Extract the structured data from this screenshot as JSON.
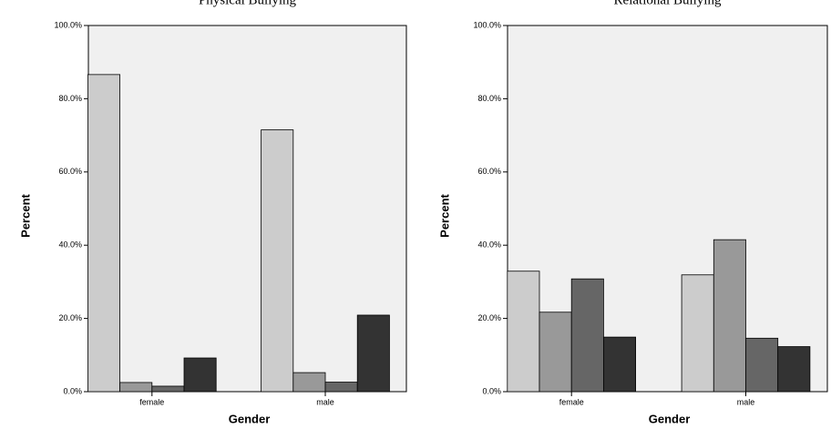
{
  "chart_data": [
    {
      "type": "bar",
      "title": "Physical Bullying",
      "x_label": "Gender",
      "y_label": "Percent",
      "categories": [
        "female",
        "male"
      ],
      "series": [
        {
          "color": "#cccccc",
          "values": [
            86.6,
            71.5
          ]
        },
        {
          "color": "#999999",
          "values": [
            2.5,
            5.2
          ]
        },
        {
          "color": "#666666",
          "values": [
            1.5,
            2.6
          ]
        },
        {
          "color": "#333333",
          "values": [
            9.2,
            20.9
          ]
        }
      ],
      "ylim": [
        0,
        100
      ],
      "yticks": [
        {
          "value": 0,
          "label": "0.0%"
        },
        {
          "value": 20,
          "label": "20.0%"
        },
        {
          "value": 40,
          "label": "40.0%"
        },
        {
          "value": 60,
          "label": "60.0%"
        },
        {
          "value": 80,
          "label": "80.0%"
        },
        {
          "value": 100,
          "label": "100.0%"
        }
      ]
    },
    {
      "type": "bar",
      "title": "Relational Bullying",
      "x_label": "Gender",
      "y_label": "Percent",
      "categories": [
        "female",
        "male"
      ],
      "series": [
        {
          "color": "#cccccc",
          "values": [
            32.9,
            31.9
          ]
        },
        {
          "color": "#999999",
          "values": [
            21.7,
            41.5
          ]
        },
        {
          "color": "#666666",
          "values": [
            30.8,
            14.6
          ]
        },
        {
          "color": "#333333",
          "values": [
            14.9,
            12.3
          ]
        }
      ],
      "ylim": [
        0,
        100
      ],
      "yticks": [
        {
          "value": 0,
          "label": "0.0%"
        },
        {
          "value": 20,
          "label": "20.0%"
        },
        {
          "value": 40,
          "label": "40.0%"
        },
        {
          "value": 60,
          "label": "60.0%"
        },
        {
          "value": 80,
          "label": "80.0%"
        },
        {
          "value": 100,
          "label": "100.0%"
        }
      ]
    }
  ]
}
